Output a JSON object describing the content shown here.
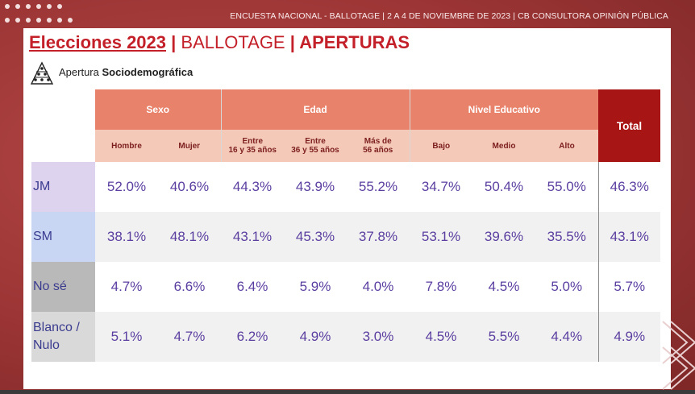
{
  "header": {
    "text": "ENCUESTA NACIONAL - BALLOTAGE  | 2 A 4 DE NOVIEMBRE DE 2023 | CB CONSULTORA OPINIÓN PÚBLICA"
  },
  "title": {
    "part1": "Elecciones 2023",
    "sep1": " | ",
    "part2": "BALLOTAGE",
    "sep2": " | ",
    "part3": "APERTURAS"
  },
  "subtitle": {
    "prefix": "Apertura ",
    "bold": "Sociodemográfica"
  },
  "table": {
    "groups": [
      "Sexo",
      "Edad",
      "Nivel Educativo"
    ],
    "total_label": "Total",
    "subheaders": [
      [
        "Hombre"
      ],
      [
        "Mujer"
      ],
      [
        "Entre",
        "16 y 35 años"
      ],
      [
        "Entre",
        "36 y 55 años"
      ],
      [
        "Más de",
        "56 años"
      ],
      [
        "Bajo"
      ],
      [
        "Medio"
      ],
      [
        "Alto"
      ]
    ],
    "rows": [
      {
        "label": [
          "JM"
        ],
        "values": [
          "52.0%",
          "40.6%",
          "44.3%",
          "43.9%",
          "55.2%",
          "34.7%",
          "50.4%",
          "55.0%",
          "46.3%"
        ]
      },
      {
        "label": [
          "SM"
        ],
        "values": [
          "38.1%",
          "48.1%",
          "43.1%",
          "45.3%",
          "37.8%",
          "53.1%",
          "39.6%",
          "35.5%",
          "43.1%"
        ]
      },
      {
        "label": [
          "No sé"
        ],
        "values": [
          "4.7%",
          "6.6%",
          "6.4%",
          "5.9%",
          "4.0%",
          "7.8%",
          "4.5%",
          "5.0%",
          "5.7%"
        ]
      },
      {
        "label": [
          "Blanco /",
          "Nulo"
        ],
        "values": [
          "5.1%",
          "4.7%",
          "6.2%",
          "4.9%",
          "3.0%",
          "4.5%",
          "5.5%",
          "4.4%",
          "4.9%"
        ]
      }
    ]
  },
  "colors": {
    "background": "#a23c3c",
    "accent_red": "#c3202a",
    "group_header": "#e8826a",
    "sub_header": "#f4c9b7",
    "total_header": "#a81515",
    "value_text": "#5a3fa0"
  }
}
